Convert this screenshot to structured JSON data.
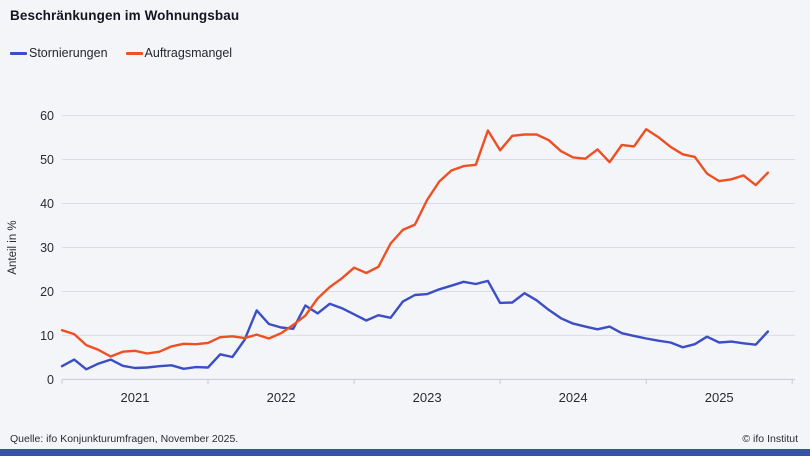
{
  "title": "Beschränkungen im Wohnungsbau",
  "legend": [
    {
      "label": "Stornierungen",
      "color": "#3c4ec5"
    },
    {
      "label": "Auftragsmangel",
      "color": "#ee5023"
    }
  ],
  "footer": {
    "source": "Quelle: ifo Konjunkturumfragen,  November 2025.",
    "copyright": "© ifo Institut"
  },
  "colors": {
    "background": "#f4f5f9",
    "grid": "#dcdde4",
    "axis": "#c8c9d2",
    "text": "#2a2a33",
    "bottom_bar": "#3552a4",
    "series_stornierungen": "#3c4ec5",
    "series_auftragsmangel": "#ee5023"
  },
  "chart_data": {
    "type": "line",
    "title": "Beschränkungen im Wohnungsbau",
    "xlabel": "",
    "ylabel": "Anteil in %",
    "ylim": [
      0,
      60
    ],
    "yticks": [
      0,
      10,
      20,
      30,
      40,
      50,
      60
    ],
    "grid": true,
    "legend_position": "top-left",
    "x_start_month": "2021-01",
    "x_end_month": "2025-11",
    "x_year_labels": [
      "2021",
      "2022",
      "2023",
      "2024",
      "2025"
    ],
    "series": [
      {
        "name": "Stornierungen",
        "color": "#3c4ec5",
        "values": [
          3.0,
          4.5,
          2.3,
          3.6,
          4.5,
          3.1,
          2.6,
          2.7,
          3.0,
          3.2,
          2.4,
          2.8,
          2.7,
          5.7,
          5.1,
          9.0,
          15.7,
          12.6,
          11.8,
          11.5,
          16.8,
          15.0,
          17.2,
          16.2,
          14.8,
          13.4,
          14.6,
          14.0,
          17.7,
          19.2,
          19.4,
          20.5,
          21.3,
          22.2,
          21.7,
          22.4,
          17.4,
          17.5,
          19.6,
          18.0,
          15.8,
          13.9,
          12.7,
          12.0,
          11.4,
          12.0,
          10.5,
          9.9,
          9.3,
          8.8,
          8.4,
          7.3,
          8.0,
          9.7,
          8.4,
          8.6,
          8.2,
          7.9,
          10.9
        ]
      },
      {
        "name": "Auftragsmangel",
        "color": "#ee5023",
        "values": [
          11.2,
          10.3,
          7.8,
          6.7,
          5.2,
          6.3,
          6.5,
          5.9,
          6.3,
          7.5,
          8.1,
          8.0,
          8.3,
          9.6,
          9.8,
          9.4,
          10.2,
          9.3,
          10.5,
          12.4,
          14.5,
          18.4,
          21.0,
          23.0,
          25.4,
          24.2,
          25.6,
          30.9,
          34.0,
          35.2,
          40.8,
          45.0,
          47.5,
          48.5,
          48.8,
          56.6,
          52.1,
          55.4,
          55.7,
          55.7,
          54.4,
          51.9,
          50.5,
          50.2,
          52.3,
          49.4,
          53.3,
          53.0,
          56.9,
          55.1,
          52.9,
          51.2,
          50.6,
          46.8,
          45.1,
          45.5,
          46.4,
          44.2,
          47.0
        ]
      }
    ]
  }
}
